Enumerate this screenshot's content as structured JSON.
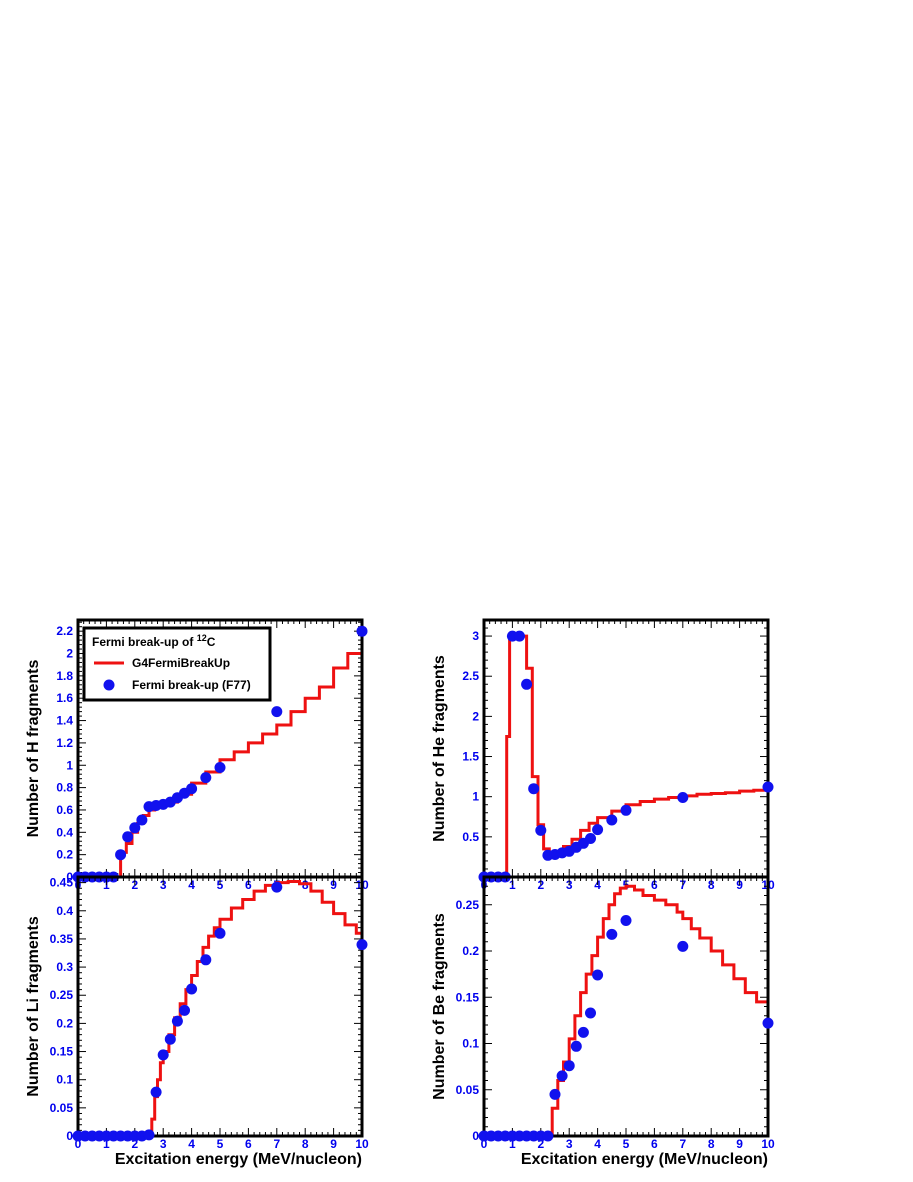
{
  "x_axis_title": "Excitation energy (MeV/nucleon)",
  "legend": {
    "title_prefix": "Fermi break-up of ",
    "title_sup": "12",
    "title_suffix": "C",
    "entries": [
      "G4FermiBreakUp",
      "Fermi break-up (F77)"
    ]
  },
  "colors": {
    "line": "#ee1111",
    "marker": "#1111ee",
    "tick_label": "#0000ee"
  },
  "chart_data": [
    {
      "type": "line",
      "ylabel": "Number of H fragments",
      "xlim": [
        0,
        10
      ],
      "ylim": [
        0,
        2.3
      ],
      "xticks": [
        "0",
        "1",
        "2",
        "3",
        "4",
        "5",
        "6",
        "7",
        "8",
        "9",
        "10"
      ],
      "yticks": [
        0,
        0.2,
        0.4,
        0.6,
        0.8,
        1,
        1.2,
        1.4,
        1.6,
        1.8,
        2,
        2.2
      ],
      "yticks_text": [
        "0",
        "0.2",
        "0.4",
        "0.6",
        "0.8",
        "1",
        "1.2",
        "1.4",
        "1.6",
        "1.8",
        "2",
        "2.2"
      ],
      "series": [
        {
          "kind": "histogram",
          "x": [
            0,
            1.5,
            1.5,
            1.7,
            1.9,
            2.1,
            2.3,
            2.5,
            2.7,
            3,
            3.5,
            4,
            4.5,
            5,
            5.5,
            6,
            6.5,
            7,
            7.5,
            8,
            8.5,
            9,
            9.5,
            10
          ],
          "y": [
            0,
            0,
            0.22,
            0.3,
            0.4,
            0.48,
            0.55,
            0.6,
            0.63,
            0.67,
            0.74,
            0.84,
            0.94,
            1.05,
            1.12,
            1.2,
            1.28,
            1.36,
            1.48,
            1.6,
            1.7,
            1.87,
            2.0,
            2.15
          ]
        },
        {
          "kind": "points",
          "x": [
            0,
            0.25,
            0.5,
            0.75,
            1,
            1.25,
            1.5,
            1.75,
            2,
            2.25,
            2.5,
            2.75,
            3,
            3.25,
            3.5,
            3.75,
            4,
            4.5,
            5,
            7,
            10
          ],
          "y": [
            0,
            0,
            0,
            0,
            0,
            0,
            0.2,
            0.36,
            0.44,
            0.51,
            0.63,
            0.64,
            0.65,
            0.67,
            0.71,
            0.75,
            0.79,
            0.89,
            0.98,
            1.48,
            2.2
          ]
        }
      ]
    },
    {
      "type": "line",
      "ylabel": "Number of He fragments",
      "xlim": [
        0,
        10
      ],
      "ylim": [
        0,
        3.2
      ],
      "xticks": [
        "0",
        "1",
        "2",
        "3",
        "4",
        "5",
        "6",
        "7",
        "8",
        "9",
        "10"
      ],
      "yticks": [
        0.5,
        1,
        1.5,
        2,
        2.5,
        3
      ],
      "yticks_text": [
        "0.5",
        "1",
        "1.5",
        "2",
        "2.5",
        "3"
      ],
      "series": [
        {
          "kind": "histogram",
          "x": [
            0,
            0.8,
            0.8,
            0.9,
            1.5,
            1.5,
            1.7,
            1.9,
            2.1,
            2.3,
            2.5,
            2.8,
            3.1,
            3.4,
            3.7,
            4,
            4.5,
            5,
            5.5,
            6,
            6.5,
            7,
            7.5,
            8,
            8.5,
            9,
            9.5,
            10
          ],
          "y": [
            0,
            0,
            1.75,
            3.0,
            3.0,
            2.6,
            1.25,
            0.65,
            0.35,
            0.25,
            0.3,
            0.38,
            0.47,
            0.58,
            0.67,
            0.74,
            0.82,
            0.9,
            0.94,
            0.97,
            0.99,
            1.01,
            1.03,
            1.04,
            1.05,
            1.07,
            1.08,
            1.1
          ]
        },
        {
          "kind": "points",
          "x": [
            0,
            0.25,
            0.5,
            0.75,
            1,
            1.25,
            1.5,
            1.75,
            2,
            2.25,
            2.5,
            2.75,
            3,
            3.25,
            3.5,
            3.75,
            4,
            4.5,
            5,
            7,
            10
          ],
          "y": [
            0,
            0,
            0,
            0,
            3.0,
            3.0,
            2.4,
            1.1,
            0.58,
            0.27,
            0.28,
            0.3,
            0.32,
            0.37,
            0.42,
            0.48,
            0.59,
            0.71,
            0.83,
            0.99,
            1.12
          ]
        }
      ]
    },
    {
      "type": "line",
      "ylabel": "Number of Li fragments",
      "xlim": [
        0,
        10
      ],
      "ylim": [
        0,
        0.46
      ],
      "xticks": [
        "0",
        "1",
        "2",
        "3",
        "4",
        "5",
        "6",
        "7",
        "8",
        "9",
        "10"
      ],
      "yticks": [
        0,
        0.05,
        0.1,
        0.15,
        0.2,
        0.25,
        0.3,
        0.35,
        0.4,
        0.45
      ],
      "yticks_text": [
        "0",
        "0.05",
        "0.1",
        "0.15",
        "0.2",
        "0.25",
        "0.3",
        "0.35",
        "0.4",
        "0.45"
      ],
      "series": [
        {
          "kind": "histogram",
          "x": [
            0,
            2.6,
            2.6,
            2.7,
            2.8,
            2.9,
            3,
            3.2,
            3.4,
            3.6,
            3.8,
            4,
            4.2,
            4.4,
            4.6,
            4.8,
            5,
            5.4,
            5.8,
            6.2,
            6.6,
            7,
            7.4,
            7.8,
            8.2,
            8.6,
            9,
            9.4,
            9.8,
            10
          ],
          "y": [
            0,
            0,
            0.03,
            0.07,
            0.1,
            0.13,
            0.15,
            0.18,
            0.21,
            0.235,
            0.26,
            0.285,
            0.31,
            0.335,
            0.355,
            0.37,
            0.385,
            0.405,
            0.42,
            0.435,
            0.445,
            0.45,
            0.452,
            0.448,
            0.435,
            0.415,
            0.395,
            0.375,
            0.36,
            0.35
          ]
        },
        {
          "kind": "points",
          "x": [
            0,
            0.25,
            0.5,
            0.75,
            1,
            1.25,
            1.5,
            1.75,
            2,
            2.25,
            2.5,
            2.75,
            3,
            3.25,
            3.5,
            3.75,
            4,
            4.5,
            5,
            7,
            10
          ],
          "y": [
            0,
            0,
            0,
            0,
            0,
            0,
            0,
            0,
            0,
            0,
            0.002,
            0.078,
            0.144,
            0.172,
            0.204,
            0.223,
            0.261,
            0.313,
            0.36,
            0.442,
            0.34
          ]
        }
      ]
    },
    {
      "type": "line",
      "ylabel": "Number of Be fragments",
      "xlim": [
        0,
        10
      ],
      "ylim": [
        0,
        0.28
      ],
      "xticks": [
        "0",
        "1",
        "2",
        "3",
        "4",
        "5",
        "6",
        "7",
        "8",
        "9",
        "10"
      ],
      "yticks": [
        0,
        0.05,
        0.1,
        0.15,
        0.2,
        0.25
      ],
      "yticks_text": [
        "0",
        "0.05",
        "0.1",
        "0.15",
        "0.2",
        "0.25"
      ],
      "series": [
        {
          "kind": "histogram",
          "x": [
            0,
            2.4,
            2.4,
            2.6,
            2.8,
            3,
            3.2,
            3.4,
            3.6,
            3.8,
            4,
            4.2,
            4.4,
            4.6,
            4.8,
            5,
            5.3,
            5.6,
            6,
            6.4,
            6.8,
            7,
            7.3,
            7.6,
            8,
            8.4,
            8.8,
            9.2,
            9.6,
            10
          ],
          "y": [
            0,
            0,
            0.03,
            0.06,
            0.08,
            0.105,
            0.13,
            0.155,
            0.175,
            0.195,
            0.215,
            0.235,
            0.25,
            0.262,
            0.268,
            0.27,
            0.266,
            0.26,
            0.255,
            0.25,
            0.242,
            0.235,
            0.224,
            0.214,
            0.2,
            0.185,
            0.17,
            0.155,
            0.145,
            0.13
          ]
        },
        {
          "kind": "points",
          "x": [
            0,
            0.25,
            0.5,
            0.75,
            1,
            1.25,
            1.5,
            1.75,
            2,
            2.25,
            2.5,
            2.75,
            3,
            3.25,
            3.5,
            3.75,
            4,
            4.5,
            5,
            7,
            10
          ],
          "y": [
            0,
            0,
            0,
            0,
            0,
            0,
            0,
            0,
            0,
            0,
            0.045,
            0.065,
            0.076,
            0.097,
            0.112,
            0.133,
            0.174,
            0.218,
            0.233,
            0.205,
            0.122
          ]
        }
      ]
    }
  ]
}
